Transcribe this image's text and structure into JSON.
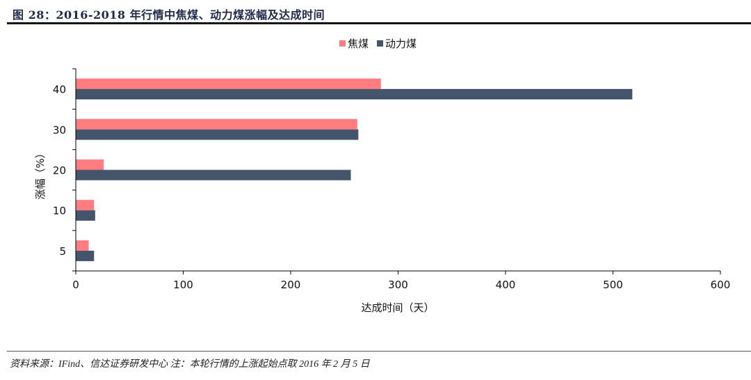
{
  "title": "图 28：2016-2018 年行情中焦煤、动力煤涨幅及达成时间",
  "source": "资料来源：IFind、信达证券研发中心 注：本轮行情的上涨起始点取 2016 年 2 月 5 日",
  "chart_data": {
    "type": "bar",
    "orientation": "horizontal",
    "categories": [
      "40",
      "30",
      "20",
      "10",
      "5"
    ],
    "series": [
      {
        "name": "焦煤",
        "color": "#FF7C80",
        "values": [
          284,
          262,
          26,
          17,
          12
        ]
      },
      {
        "name": "动力煤",
        "color": "#44546A",
        "values": [
          518,
          263,
          256,
          18,
          17
        ]
      }
    ],
    "xlabel": "达成时间（天）",
    "ylabel": "涨幅（%）",
    "xlim": [
      0,
      600
    ],
    "xticks": [
      "0",
      "100",
      "200",
      "300",
      "400",
      "500",
      "600"
    ],
    "grid": false,
    "legend": "top-center"
  }
}
